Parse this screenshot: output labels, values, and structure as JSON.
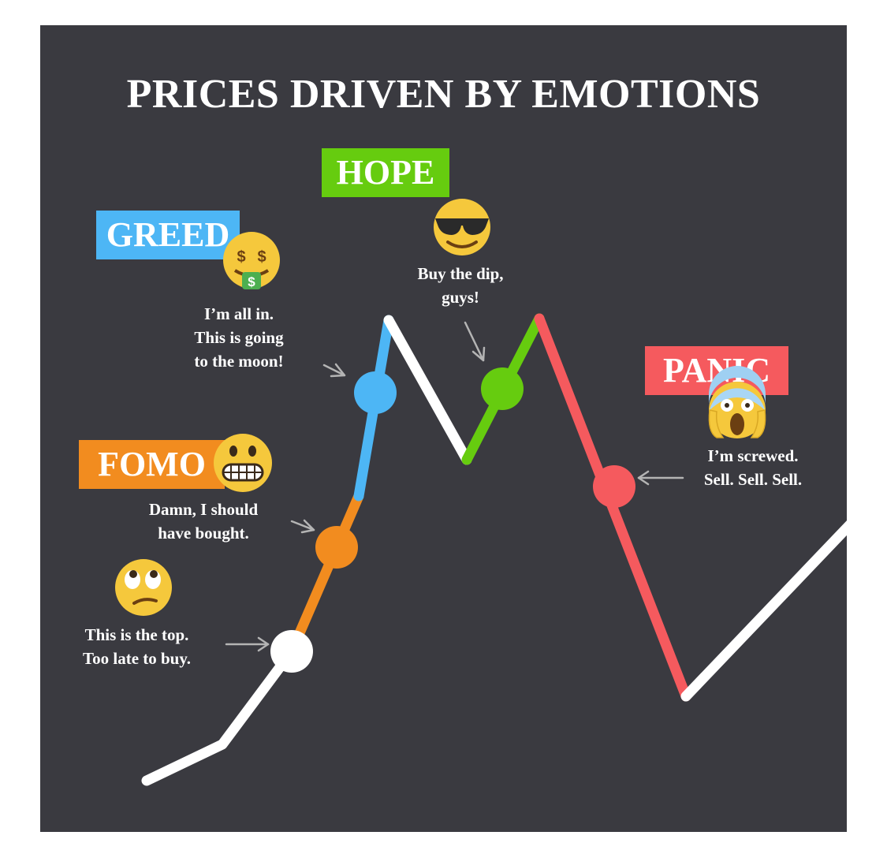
{
  "title": "PRICES DRIVEN BY EMOTIONS",
  "colors": {
    "background": "#3a3a40",
    "greed": "#4db6f5",
    "hope": "#66cc0f",
    "fomo": "#f28c1f",
    "panic": "#f55a5e",
    "neutral": "#ffffff",
    "arrow": "#b4b4b4"
  },
  "labels": {
    "greed": "GREED",
    "hope": "HOPE",
    "fomo": "FOMO",
    "panic": "PANIC"
  },
  "quotes": {
    "top": [
      "This is the top.",
      "Too late to buy."
    ],
    "fomo": [
      "Damn, I should",
      "have bought."
    ],
    "greed": [
      "I’m all in.",
      "This is going",
      "to the moon!"
    ],
    "hope": [
      "Buy the dip,",
      "guys!"
    ],
    "panic": [
      "I’m screwed.",
      "Sell. Sell. Sell."
    ]
  },
  "emojis": {
    "top": "eye-roll-emoji",
    "fomo": "grimace-emoji",
    "greed": "money-mouth-emoji",
    "hope": "sunglasses-emoji",
    "panic": "screaming-emoji"
  }
}
